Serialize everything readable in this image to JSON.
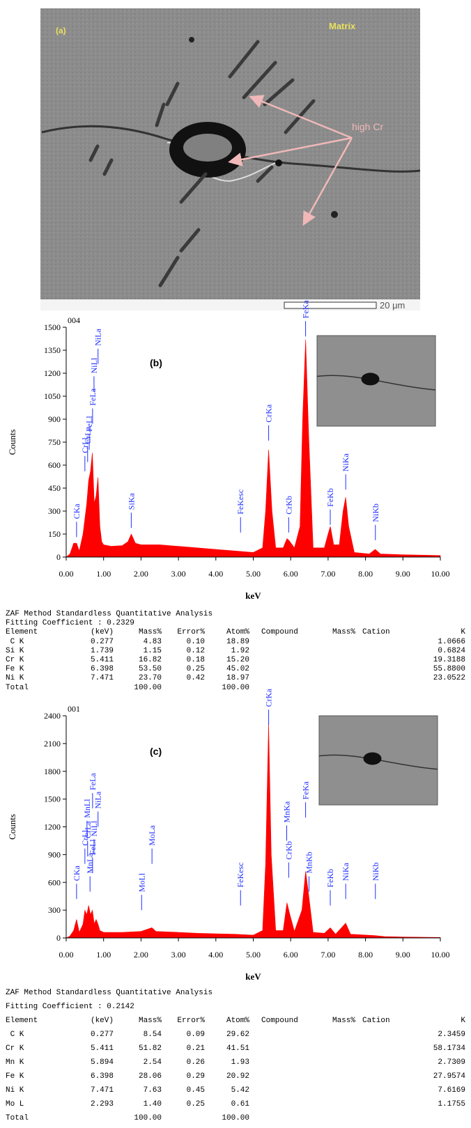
{
  "image": {
    "panel_label": "(a)",
    "matrix_label": "Matrix",
    "phase_label": "high Cr",
    "scale_bar": "20 μm"
  },
  "chart_data": [
    {
      "type": "area",
      "title": "004",
      "panel_label": "(b)",
      "xlabel": "keV",
      "ylabel": "Counts",
      "color": "#ff0000",
      "xlim": [
        0,
        10
      ],
      "ylim": [
        0,
        1500
      ],
      "xticks": [
        {
          "value": 0,
          "label": "0.00"
        },
        {
          "value": 1,
          "label": "1.00"
        },
        {
          "value": 2,
          "label": "2.00"
        },
        {
          "value": 3,
          "label": "3.00"
        },
        {
          "value": 4,
          "label": "4.00"
        },
        {
          "value": 5,
          "label": "5.00"
        },
        {
          "value": 6,
          "label": "6.00"
        },
        {
          "value": 7,
          "label": "7.00"
        },
        {
          "value": 8,
          "label": "8.00"
        },
        {
          "value": 9,
          "label": "9.00"
        },
        {
          "value": 10,
          "label": "10.00"
        }
      ],
      "yticks": [
        0,
        150,
        300,
        450,
        600,
        750,
        900,
        1050,
        1200,
        1350,
        1500
      ],
      "x": [
        0,
        0.1,
        0.2,
        0.277,
        0.35,
        0.45,
        0.5,
        0.55,
        0.6,
        0.65,
        0.7,
        0.75,
        0.8,
        0.85,
        0.9,
        0.95,
        1.0,
        1.2,
        1.5,
        1.65,
        1.74,
        1.85,
        2.0,
        2.5,
        3.0,
        3.5,
        4.0,
        4.5,
        5.0,
        5.25,
        5.33,
        5.41,
        5.5,
        5.6,
        5.8,
        5.9,
        5.95,
        6.1,
        6.25,
        6.32,
        6.4,
        6.48,
        6.6,
        6.9,
        7.0,
        7.06,
        7.15,
        7.3,
        7.4,
        7.47,
        7.55,
        7.7,
        8.1,
        8.26,
        8.4,
        9.0,
        10.0
      ],
      "values": [
        0,
        20,
        90,
        90,
        40,
        150,
        250,
        350,
        500,
        560,
        680,
        350,
        400,
        520,
        200,
        100,
        80,
        70,
        75,
        100,
        150,
        90,
        80,
        80,
        70,
        60,
        50,
        40,
        30,
        60,
        300,
        700,
        300,
        60,
        60,
        120,
        110,
        60,
        200,
        900,
        1420,
        800,
        60,
        60,
        150,
        200,
        80,
        80,
        300,
        390,
        200,
        30,
        20,
        50,
        20,
        15,
        10
      ],
      "peaks": [
        {
          "label": "CKa",
          "x": 0.277,
          "y": 130
        },
        {
          "label": "CrLl",
          "x": 0.5,
          "y": 560
        },
        {
          "label": "CrLa",
          "x": 0.573,
          "y": 620
        },
        {
          "label": "FeLl",
          "x": 0.615,
          "y": 700
        },
        {
          "label": "FeLa",
          "x": 0.705,
          "y": 870
        },
        {
          "label": "NiLl",
          "x": 0.743,
          "y": 1080
        },
        {
          "label": "NiLa",
          "x": 0.851,
          "y": 1260
        },
        {
          "label": "SiKa",
          "x": 1.739,
          "y": 190
        },
        {
          "label": "FeKesc",
          "x": 4.66,
          "y": 160
        },
        {
          "label": "CrKa",
          "x": 5.411,
          "y": 760
        },
        {
          "label": "CrKb",
          "x": 5.947,
          "y": 160
        },
        {
          "label": "FeKa",
          "x": 6.398,
          "y": 1440
        },
        {
          "label": "FeKb",
          "x": 7.058,
          "y": 210
        },
        {
          "label": "NiKa",
          "x": 7.471,
          "y": 440
        },
        {
          "label": "NiKb",
          "x": 8.264,
          "y": 110
        }
      ]
    },
    {
      "type": "area",
      "title": "001",
      "panel_label": "(c)",
      "xlabel": "keV",
      "ylabel": "Counts",
      "color": "#ff0000",
      "xlim": [
        0,
        10
      ],
      "ylim": [
        0,
        2400
      ],
      "xticks": [
        {
          "value": 0,
          "label": "0.00"
        },
        {
          "value": 1,
          "label": "1.00"
        },
        {
          "value": 2,
          "label": "2.00"
        },
        {
          "value": 3,
          "label": "3.00"
        },
        {
          "value": 4,
          "label": "4.00"
        },
        {
          "value": 5,
          "label": "5.00"
        },
        {
          "value": 6,
          "label": "6.00"
        },
        {
          "value": 7,
          "label": "7.00"
        },
        {
          "value": 8,
          "label": "8.00"
        },
        {
          "value": 9,
          "label": "9.00"
        },
        {
          "value": 10,
          "label": "10.00"
        }
      ],
      "yticks": [
        0,
        300,
        600,
        900,
        1200,
        1500,
        1800,
        2100,
        2400
      ],
      "x": [
        0,
        0.1,
        0.2,
        0.277,
        0.35,
        0.45,
        0.5,
        0.55,
        0.6,
        0.65,
        0.7,
        0.75,
        0.8,
        0.85,
        0.9,
        1.0,
        1.5,
        2.0,
        2.29,
        2.4,
        3.0,
        3.5,
        4.0,
        4.5,
        5.0,
        5.25,
        5.33,
        5.41,
        5.48,
        5.6,
        5.8,
        5.9,
        5.98,
        6.1,
        6.3,
        6.4,
        6.5,
        6.6,
        6.9,
        7.06,
        7.2,
        7.47,
        7.6,
        8.26,
        8.5,
        9.0,
        10.0
      ],
      "values": [
        0,
        20,
        80,
        200,
        60,
        150,
        300,
        250,
        350,
        250,
        300,
        150,
        200,
        150,
        80,
        60,
        60,
        70,
        110,
        70,
        60,
        50,
        45,
        40,
        30,
        80,
        800,
        2320,
        900,
        80,
        80,
        380,
        250,
        70,
        300,
        720,
        400,
        60,
        50,
        110,
        40,
        160,
        40,
        25,
        15,
        10,
        5
      ],
      "peaks": [
        {
          "label": "CKa",
          "x": 0.277,
          "y": 420
        },
        {
          "label": "CrLl",
          "x": 0.5,
          "y": 800
        },
        {
          "label": "CrLa",
          "x": 0.573,
          "y": 880
        },
        {
          "label": "MnLa",
          "x": 0.637,
          "y": 500
        },
        {
          "label": "FeLl",
          "x": 0.705,
          "y": 700
        },
        {
          "label": "MnLl",
          "x": 0.556,
          "y": 1100
        },
        {
          "label": "FeLa",
          "x": 0.705,
          "y": 1400
        },
        {
          "label": "NiLl",
          "x": 0.743,
          "y": 900
        },
        {
          "label": "NiLa",
          "x": 0.851,
          "y": 1200
        },
        {
          "label": "MoLl",
          "x": 2.016,
          "y": 300
        },
        {
          "label": "MoLa",
          "x": 2.293,
          "y": 800
        },
        {
          "label": "FeKesc",
          "x": 4.66,
          "y": 350
        },
        {
          "label": "CrKa",
          "x": 5.411,
          "y": 2300
        },
        {
          "label": "CrKb",
          "x": 5.947,
          "y": 650
        },
        {
          "label": "MnKa",
          "x": 5.894,
          "y": 1050
        },
        {
          "label": "FeKa",
          "x": 6.398,
          "y": 1300
        },
        {
          "label": "MnKb",
          "x": 6.49,
          "y": 500
        },
        {
          "label": "FeKb",
          "x": 7.058,
          "y": 350
        },
        {
          "label": "NiKa",
          "x": 7.471,
          "y": 420
        },
        {
          "label": "NiKb",
          "x": 8.264,
          "y": 420
        }
      ]
    }
  ],
  "tables": [
    {
      "title": "ZAF Method Standardless Quantitative Analysis",
      "fit": "Fitting Coefficient : 0.2329",
      "header": [
        "Element",
        "(keV)",
        "Mass%",
        "Error%",
        "Atom%",
        "Compound",
        "Mass%",
        "Cation",
        "K"
      ],
      "rows": [
        [
          " C K",
          "0.277",
          "4.83",
          "0.10",
          "18.89",
          "1.0666"
        ],
        [
          "Si K",
          "1.739",
          "1.15",
          "0.12",
          "1.92",
          "0.6824"
        ],
        [
          "Cr K",
          "5.411",
          "16.82",
          "0.18",
          "15.20",
          "19.3188"
        ],
        [
          "Fe K",
          "6.398",
          "53.50",
          "0.25",
          "45.02",
          "55.8800"
        ],
        [
          "Ni K",
          "7.471",
          "23.70",
          "0.42",
          "18.97",
          "23.0522"
        ]
      ],
      "total": {
        "label": "Total",
        "mass": "100.00",
        "atom": "100.00"
      }
    },
    {
      "title": "ZAF Method Standardless Quantitative Analysis",
      "fit": "Fitting Coefficient : 0.2142",
      "header": [
        "Element",
        "(keV)",
        "Mass%",
        "Error%",
        "Atom%",
        "Compound",
        "Mass%",
        "Cation",
        "K"
      ],
      "rows": [
        [
          " C K",
          "0.277",
          "8.54",
          "0.09",
          "29.62",
          "2.3459"
        ],
        [
          "Cr K",
          "5.411",
          "51.82",
          "0.21",
          "41.51",
          "58.1734"
        ],
        [
          "Mn K",
          "5.894",
          "2.54",
          "0.26",
          "1.93",
          "2.7309"
        ],
        [
          "Fe K",
          "6.398",
          "28.06",
          "0.29",
          "20.92",
          "27.9574"
        ],
        [
          "Ni K",
          "7.471",
          "7.63",
          "0.45",
          "5.42",
          "7.6169"
        ],
        [
          "Mo L",
          "2.293",
          "1.40",
          "0.25",
          "0.61",
          "1.1755"
        ]
      ],
      "total": {
        "label": "Total",
        "mass": "100.00",
        "atom": "100.00"
      }
    }
  ]
}
